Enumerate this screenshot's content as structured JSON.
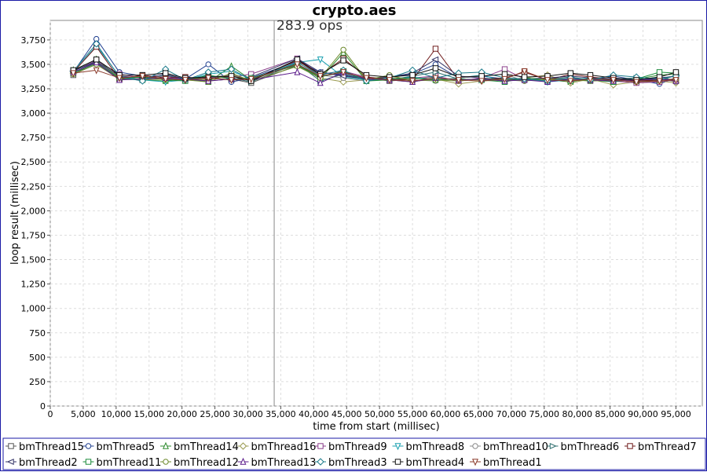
{
  "chart_data": {
    "type": "line",
    "title": "crypto.aes",
    "annotation": "283.9 ops",
    "annotation_x": 34000,
    "xlabel": "time from start (millisec)",
    "ylabel": "loop result (millisec)",
    "xlim": [
      0,
      99000
    ],
    "ylim": [
      0,
      3950
    ],
    "x_ticks": [
      0,
      5000,
      10000,
      15000,
      20000,
      25000,
      30000,
      35000,
      40000,
      45000,
      50000,
      55000,
      60000,
      65000,
      70000,
      75000,
      80000,
      85000,
      90000,
      95000
    ],
    "x_tick_labels": [
      "0",
      "5,000",
      "10,000",
      "15,000",
      "20,000",
      "25,000",
      "30,000",
      "35,000",
      "40,000",
      "45,000",
      "50,000",
      "55,000",
      "60,000",
      "65,000",
      "70,000",
      "75,000",
      "80,000",
      "85,000",
      "90,000",
      "95,000"
    ],
    "y_ticks": [
      0,
      250,
      500,
      750,
      1000,
      1250,
      1500,
      1750,
      2000,
      2250,
      2500,
      2750,
      3000,
      3250,
      3500,
      3750
    ],
    "y_tick_labels": [
      "0",
      "250",
      "500",
      "750",
      "1,000",
      "1,250",
      "1,500",
      "1,750",
      "2,000",
      "2,250",
      "2,500",
      "2,750",
      "3,000",
      "3,250",
      "3,500",
      "3,750"
    ],
    "grid": true,
    "legend": "bottom",
    "series": [
      {
        "name": "bmThread15",
        "color": "#555555",
        "marker": "square",
        "x": [
          3500,
          7000,
          10500,
          14000,
          17500,
          20500,
          24000,
          27500,
          30500,
          37500,
          41000,
          44500,
          48000,
          51500,
          55000,
          58500,
          62000,
          65500,
          69000,
          72000,
          75500,
          79000,
          82000,
          85500,
          89000,
          92500,
          95000
        ],
        "y": [
          3390,
          3530,
          3350,
          3370,
          3340,
          3360,
          3330,
          3350,
          3310,
          3490,
          3380,
          3410,
          3360,
          3330,
          3350,
          3370,
          3330,
          3350,
          3360,
          3340,
          3330,
          3350,
          3330,
          3340,
          3320,
          3340,
          3350
        ]
      },
      {
        "name": "bmThread5",
        "color": "#1f3f8f",
        "marker": "circle",
        "x": [
          3500,
          7000,
          10500,
          14000,
          17500,
          20500,
          24000,
          27500,
          30500,
          37500,
          41000,
          44500,
          48000,
          51500,
          55000,
          58500,
          62000,
          65500,
          69000,
          72000,
          75500,
          79000,
          82000,
          85500,
          89000,
          92500,
          95000
        ],
        "y": [
          3420,
          3760,
          3420,
          3380,
          3340,
          3350,
          3500,
          3320,
          3360,
          3530,
          3420,
          3390,
          3350,
          3370,
          3400,
          3500,
          3360,
          3380,
          3350,
          3330,
          3360,
          3340,
          3350,
          3380,
          3340,
          3300,
          3360
        ]
      },
      {
        "name": "bmThread14",
        "color": "#2e8b2e",
        "marker": "triangle-up",
        "x": [
          3500,
          7000,
          10500,
          14000,
          17500,
          20500,
          24000,
          27500,
          30500,
          37500,
          41000,
          44500,
          48000,
          51500,
          55000,
          58500,
          62000,
          65500,
          69000,
          72000,
          75500,
          79000,
          82000,
          85500,
          89000,
          92500,
          95000
        ],
        "y": [
          3440,
          3550,
          3360,
          3340,
          3330,
          3350,
          3320,
          3480,
          3340,
          3510,
          3350,
          3620,
          3330,
          3340,
          3320,
          3360,
          3340,
          3350,
          3330,
          3360,
          3340,
          3320,
          3360,
          3330,
          3350,
          3390,
          3400
        ]
      },
      {
        "name": "bmThread16",
        "color": "#9a9a50",
        "marker": "diamond",
        "x": [
          3500,
          7000,
          10500,
          14000,
          17500,
          20500,
          24000,
          27500,
          30500,
          37500,
          41000,
          44500,
          48000,
          51500,
          55000,
          58500,
          62000,
          65500,
          69000,
          72000,
          75500,
          79000,
          82000,
          85500,
          89000,
          92500,
          95000
        ],
        "y": [
          3410,
          3520,
          3370,
          3360,
          3350,
          3360,
          3340,
          3400,
          3330,
          3480,
          3360,
          3320,
          3340,
          3380,
          3330,
          3350,
          3300,
          3330,
          3340,
          3360,
          3390,
          3310,
          3350,
          3290,
          3320,
          3330,
          3310
        ]
      },
      {
        "name": "bmThread9",
        "color": "#8b3f8b",
        "marker": "square",
        "x": [
          3500,
          7000,
          10500,
          14000,
          17500,
          20500,
          24000,
          27500,
          30500,
          37500,
          41000,
          44500,
          48000,
          51500,
          55000,
          58500,
          62000,
          65500,
          69000,
          72000,
          75500,
          79000,
          82000,
          85500,
          89000,
          92500,
          95000
        ],
        "y": [
          3430,
          3540,
          3400,
          3360,
          3380,
          3350,
          3360,
          3370,
          3400,
          3560,
          3400,
          3430,
          3370,
          3340,
          3360,
          3380,
          3330,
          3360,
          3450,
          3350,
          3330,
          3360,
          3340,
          3330,
          3310,
          3320,
          3340
        ]
      },
      {
        "name": "bmThread8",
        "color": "#1aa0b0",
        "marker": "triangle-down",
        "x": [
          3500,
          7000,
          10500,
          14000,
          17500,
          20500,
          24000,
          27500,
          30500,
          37500,
          41000,
          44500,
          48000,
          51500,
          55000,
          58500,
          62000,
          65500,
          69000,
          72000,
          75500,
          79000,
          82000,
          85500,
          89000,
          92500,
          95000
        ],
        "y": [
          3420,
          3690,
          3380,
          3340,
          3320,
          3340,
          3400,
          3430,
          3350,
          3520,
          3550,
          3370,
          3340,
          3350,
          3370,
          3340,
          3360,
          3390,
          3330,
          3350,
          3320,
          3340,
          3360,
          3330,
          3340,
          3370,
          3330
        ]
      },
      {
        "name": "bmThread10",
        "color": "#8a8a8a",
        "marker": "circle",
        "x": [
          3500,
          7000,
          10500,
          14000,
          17500,
          20500,
          24000,
          27500,
          30500,
          37500,
          41000,
          44500,
          48000,
          51500,
          55000,
          58500,
          62000,
          65500,
          69000,
          72000,
          75500,
          79000,
          82000,
          85500,
          89000,
          92500,
          95000
        ],
        "y": [
          3400,
          3500,
          3350,
          3350,
          3360,
          3340,
          3370,
          3390,
          3340,
          3500,
          3390,
          3360,
          3330,
          3360,
          3340,
          3330,
          3360,
          3380,
          3400,
          3330,
          3360,
          3350,
          3330,
          3360,
          3330,
          3350,
          3320
        ]
      },
      {
        "name": "bmThread6",
        "color": "#2e6e6e",
        "marker": "triangle-right",
        "x": [
          3500,
          7000,
          10500,
          14000,
          17500,
          20500,
          24000,
          27500,
          30500,
          37500,
          41000,
          44500,
          48000,
          51500,
          55000,
          58500,
          62000,
          65500,
          69000,
          72000,
          75500,
          79000,
          82000,
          85500,
          89000,
          92500,
          95000
        ],
        "y": [
          3440,
          3520,
          3360,
          3340,
          3390,
          3350,
          3380,
          3360,
          3320,
          3510,
          3330,
          3400,
          3350,
          3340,
          3380,
          3420,
          3350,
          3340,
          3360,
          3340,
          3350,
          3370,
          3340,
          3350,
          3360,
          3330,
          3390
        ]
      },
      {
        "name": "bmThread7",
        "color": "#6e1a1a",
        "marker": "square",
        "x": [
          3500,
          7000,
          10500,
          14000,
          17500,
          20500,
          24000,
          27500,
          30500,
          37500,
          41000,
          44500,
          48000,
          51500,
          55000,
          58500,
          62000,
          65500,
          69000,
          72000,
          75500,
          79000,
          82000,
          85500,
          89000,
          92500,
          95000
        ],
        "y": [
          3420,
          3680,
          3350,
          3390,
          3360,
          3370,
          3350,
          3380,
          3340,
          3540,
          3390,
          3560,
          3370,
          3350,
          3340,
          3660,
          3340,
          3350,
          3360,
          3420,
          3340,
          3400,
          3370,
          3350,
          3330,
          3340,
          3350
        ]
      },
      {
        "name": "bmThread2",
        "color": "#333366",
        "marker": "triangle-left",
        "x": [
          3500,
          7000,
          10500,
          14000,
          17500,
          20500,
          24000,
          27500,
          30500,
          37500,
          41000,
          44500,
          48000,
          51500,
          55000,
          58500,
          62000,
          65500,
          69000,
          72000,
          75500,
          79000,
          82000,
          85500,
          89000,
          92500,
          95000
        ],
        "y": [
          3430,
          3530,
          3380,
          3360,
          3400,
          3350,
          3360,
          3340,
          3370,
          3560,
          3420,
          3380,
          3350,
          3370,
          3410,
          3550,
          3380,
          3360,
          3340,
          3350,
          3360,
          3380,
          3360,
          3350,
          3340,
          3360,
          3380
        ]
      },
      {
        "name": "bmThread11",
        "color": "#1a8a3a",
        "marker": "square",
        "x": [
          3500,
          7000,
          10500,
          14000,
          17500,
          20500,
          24000,
          27500,
          30500,
          37500,
          41000,
          44500,
          48000,
          51500,
          55000,
          58500,
          62000,
          65500,
          69000,
          72000,
          75500,
          79000,
          82000,
          85500,
          89000,
          92500,
          95000
        ],
        "y": [
          3410,
          3510,
          3360,
          3370,
          3340,
          3330,
          3390,
          3350,
          3360,
          3490,
          3370,
          3430,
          3330,
          3350,
          3360,
          3340,
          3350,
          3340,
          3320,
          3360,
          3340,
          3330,
          3340,
          3320,
          3350,
          3420,
          3410
        ]
      },
      {
        "name": "bmThread12",
        "color": "#6e8a2e",
        "marker": "circle",
        "x": [
          3500,
          7000,
          10500,
          14000,
          17500,
          20500,
          24000,
          27500,
          30500,
          37500,
          41000,
          44500,
          48000,
          51500,
          55000,
          58500,
          62000,
          65500,
          69000,
          72000,
          75500,
          79000,
          82000,
          85500,
          89000,
          92500,
          95000
        ],
        "y": [
          3400,
          3500,
          3350,
          3340,
          3350,
          3340,
          3320,
          3410,
          3330,
          3480,
          3360,
          3650,
          3340,
          3390,
          3330,
          3340,
          3330,
          3350,
          3340,
          3330,
          3350,
          3340,
          3330,
          3340,
          3320,
          3330,
          3340
        ]
      },
      {
        "name": "bmThread13",
        "color": "#5a1a8a",
        "marker": "triangle-up",
        "x": [
          3500,
          7000,
          10500,
          14000,
          17500,
          20500,
          24000,
          27500,
          30500,
          37500,
          41000,
          44500,
          48000,
          51500,
          55000,
          58500,
          62000,
          65500,
          69000,
          72000,
          75500,
          79000,
          82000,
          85500,
          89000,
          92500,
          95000
        ],
        "y": [
          3420,
          3520,
          3340,
          3350,
          3360,
          3350,
          3330,
          3350,
          3340,
          3420,
          3310,
          3420,
          3350,
          3340,
          3320,
          3360,
          3340,
          3350,
          3330,
          3340,
          3320,
          3350,
          3340,
          3330,
          3340,
          3350,
          3330
        ]
      },
      {
        "name": "bmThread3",
        "color": "#1a7a8a",
        "marker": "diamond",
        "x": [
          3500,
          7000,
          10500,
          14000,
          17500,
          20500,
          24000,
          27500,
          30500,
          37500,
          41000,
          44500,
          48000,
          51500,
          55000,
          58500,
          62000,
          65500,
          69000,
          72000,
          75500,
          79000,
          82000,
          85500,
          89000,
          92500,
          95000
        ],
        "y": [
          3430,
          3710,
          3370,
          3330,
          3450,
          3340,
          3420,
          3450,
          3340,
          3520,
          3390,
          3440,
          3330,
          3360,
          3440,
          3360,
          3410,
          3420,
          3360,
          3350,
          3330,
          3360,
          3340,
          3390,
          3370,
          3350,
          3380
        ]
      },
      {
        "name": "bmThread4",
        "color": "#111111",
        "marker": "square",
        "x": [
          3500,
          7000,
          10500,
          14000,
          17500,
          20500,
          24000,
          27500,
          30500,
          37500,
          41000,
          44500,
          48000,
          51500,
          55000,
          58500,
          62000,
          65500,
          69000,
          72000,
          75500,
          79000,
          82000,
          85500,
          89000,
          92500,
          95000
        ],
        "y": [
          3440,
          3550,
          3390,
          3390,
          3410,
          3360,
          3370,
          3380,
          3330,
          3550,
          3400,
          3540,
          3390,
          3370,
          3390,
          3460,
          3370,
          3380,
          3400,
          3370,
          3380,
          3410,
          3390,
          3360,
          3340,
          3370,
          3420
        ]
      },
      {
        "name": "bmThread1",
        "color": "#8a3a2a",
        "marker": "triangle-down",
        "x": [
          3500,
          7000,
          10500,
          14000,
          17500,
          20500,
          24000,
          27500,
          30500,
          37500,
          41000,
          44500,
          48000,
          51500,
          55000,
          58500,
          62000,
          65500,
          69000,
          72000,
          75500,
          79000,
          82000,
          85500,
          89000,
          92500,
          95000
        ],
        "y": [
          3410,
          3440,
          3360,
          3380,
          3350,
          3340,
          3360,
          3340,
          3350,
          3500,
          3380,
          3420,
          3360,
          3340,
          3330,
          3360,
          3340,
          3330,
          3350,
          3430,
          3340,
          3330,
          3350,
          3340,
          3320,
          3330,
          3340
        ]
      }
    ]
  }
}
